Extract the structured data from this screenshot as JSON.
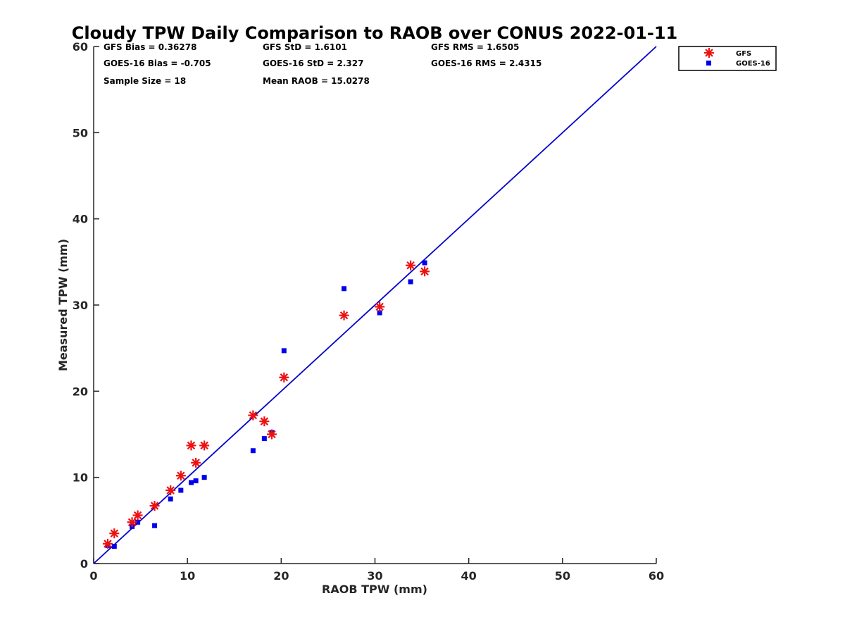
{
  "chart_data": {
    "type": "scatter",
    "title": "Cloudy TPW Daily Comparison to RAOB over CONUS 2022-01-11",
    "xlabel": "RAOB TPW (mm)",
    "ylabel": "Measured TPW (mm)",
    "xlim": [
      0,
      60
    ],
    "ylim": [
      0,
      60
    ],
    "xticks": [
      "0",
      "10",
      "20",
      "30",
      "40",
      "50",
      "60"
    ],
    "yticks": [
      "0",
      "10",
      "20",
      "30",
      "40",
      "50",
      "60"
    ],
    "grid": false,
    "legend_position": "top-right outside",
    "reference_line": {
      "x": [
        0,
        60
      ],
      "y": [
        0,
        60
      ],
      "color": "#0000cc"
    },
    "stats": {
      "gfs_bias": "GFS Bias = 0.36278",
      "gfs_std": "GFS StD = 1.6101",
      "gfs_rms": "GFS RMS = 1.6505",
      "goes_bias": "GOES-16 Bias = -0.705",
      "goes_std": "GOES-16 StD = 2.327",
      "goes_rms": "GOES-16 RMS = 2.4315",
      "sample_size": "Sample Size = 18",
      "mean_raob": "Mean RAOB = 15.0278"
    },
    "series": [
      {
        "name": "GFS",
        "marker": "asterisk",
        "color": "#ee1111",
        "x": [
          1.5,
          2.2,
          4.1,
          4.7,
          6.5,
          8.2,
          9.3,
          10.4,
          10.9,
          11.8,
          17.0,
          18.2,
          19.0,
          20.3,
          26.7,
          30.5,
          33.8,
          35.3
        ],
        "y": [
          2.3,
          3.5,
          4.8,
          5.6,
          6.7,
          8.5,
          10.2,
          13.7,
          11.7,
          13.7,
          17.2,
          16.5,
          15.0,
          21.6,
          28.8,
          29.8,
          34.6,
          33.9
        ]
      },
      {
        "name": "GOES-16",
        "marker": "square",
        "color": "#0000ee",
        "x": [
          1.5,
          2.2,
          4.1,
          4.7,
          6.5,
          8.2,
          9.3,
          10.4,
          10.9,
          11.8,
          17.0,
          18.2,
          19.0,
          20.3,
          26.7,
          30.5,
          33.8,
          35.3
        ],
        "y": [
          2.1,
          2.0,
          4.3,
          4.8,
          4.4,
          7.5,
          8.5,
          9.4,
          9.6,
          10.0,
          13.1,
          14.5,
          15.2,
          24.7,
          31.9,
          29.1,
          32.7,
          34.9
        ]
      }
    ]
  }
}
